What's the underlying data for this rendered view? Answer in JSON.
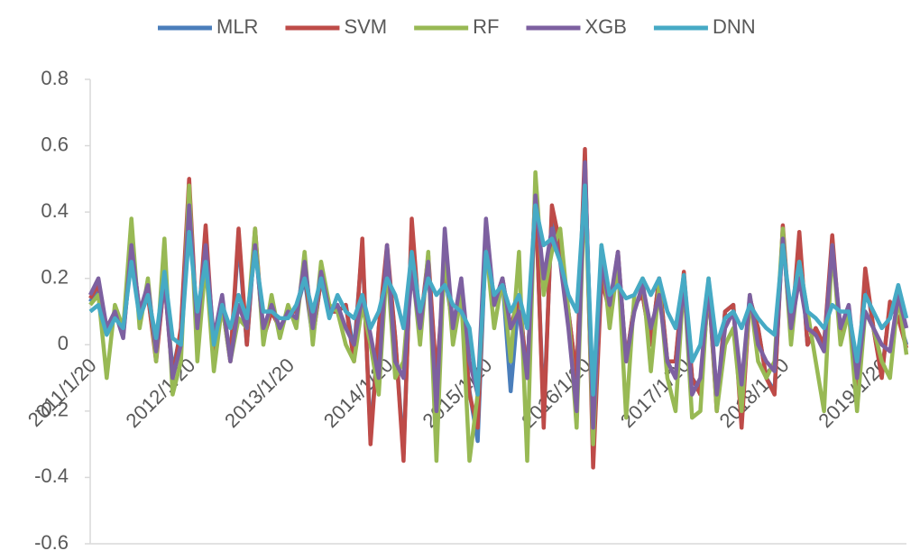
{
  "chart_data": {
    "type": "line",
    "categories": [
      "2011/1/20",
      null,
      null,
      null,
      null,
      null,
      null,
      null,
      null,
      null,
      null,
      null,
      "2012/1/20",
      null,
      null,
      null,
      null,
      null,
      null,
      null,
      null,
      null,
      null,
      null,
      "2013/1/20",
      null,
      null,
      null,
      null,
      null,
      null,
      null,
      null,
      null,
      null,
      null,
      "2014/1/20",
      null,
      null,
      null,
      null,
      null,
      null,
      null,
      null,
      null,
      null,
      null,
      "2015/1/20",
      null,
      null,
      null,
      null,
      null,
      null,
      null,
      null,
      null,
      null,
      null,
      "2016/1/20",
      null,
      null,
      null,
      null,
      null,
      null,
      null,
      null,
      null,
      null,
      null,
      "2017/1/20",
      null,
      null,
      null,
      null,
      null,
      null,
      null,
      null,
      null,
      null,
      null,
      "2018/1/20",
      null,
      null,
      null,
      null,
      null,
      null,
      null,
      null,
      null,
      null,
      null,
      "2019/1/20",
      null,
      null,
      null
    ],
    "series": [
      {
        "name": "MLR",
        "color": "#4a7ebb",
        "values": [
          0.13,
          0.17,
          0.04,
          0.1,
          0.03,
          0.28,
          0.08,
          0.15,
          -0.04,
          0.2,
          -0.08,
          0.04,
          0.47,
          0.02,
          0.33,
          -0.02,
          0.12,
          -0.04,
          0.32,
          0.0,
          0.33,
          0.02,
          0.1,
          0.05,
          0.1,
          0.1,
          0.2,
          0.02,
          0.2,
          0.1,
          0.1,
          0.12,
          -0.02,
          0.3,
          -0.28,
          0.05,
          0.28,
          0.02,
          -0.33,
          0.36,
          0.05,
          0.25,
          -0.1,
          0.22,
          0.05,
          0.14,
          -0.14,
          -0.29,
          0.33,
          0.12,
          0.2,
          -0.14,
          0.15,
          -0.1,
          0.45,
          -0.22,
          0.4,
          0.28,
          0.1,
          -0.1,
          0.56,
          -0.27,
          0.2,
          0.1,
          0.26,
          -0.05,
          0.12,
          0.15,
          0.0,
          0.2,
          -0.05,
          -0.05,
          0.2,
          -0.1,
          -0.14,
          0.17,
          -0.18,
          0.1,
          0.12,
          -0.23,
          0.14,
          0.05,
          -0.1,
          -0.14,
          0.34,
          0.02,
          0.32,
          0.0,
          0.05,
          0.0,
          0.31,
          0.02,
          0.1,
          -0.14,
          0.21,
          0.05,
          -0.09,
          0.12,
          0.08,
          0.0
        ]
      },
      {
        "name": "SVM",
        "color": "#be4b48",
        "values": [
          0.14,
          0.18,
          0.05,
          0.1,
          0.03,
          0.3,
          0.1,
          0.15,
          -0.05,
          0.2,
          -0.1,
          0.05,
          0.5,
          0.02,
          0.36,
          -0.02,
          0.12,
          -0.05,
          0.35,
          0.0,
          0.35,
          0.02,
          0.1,
          0.05,
          0.1,
          0.1,
          0.22,
          0.02,
          0.2,
          0.1,
          0.1,
          0.12,
          -0.05,
          0.32,
          -0.3,
          0.05,
          0.3,
          0.02,
          -0.35,
          0.38,
          0.05,
          0.27,
          -0.1,
          0.24,
          0.05,
          0.15,
          -0.15,
          -0.25,
          0.35,
          0.12,
          0.2,
          0.05,
          0.15,
          -0.1,
          0.47,
          -0.25,
          0.42,
          0.3,
          0.1,
          -0.1,
          0.59,
          -0.37,
          0.2,
          0.1,
          0.28,
          -0.05,
          0.12,
          0.15,
          0.0,
          0.2,
          -0.05,
          -0.05,
          0.22,
          -0.1,
          -0.15,
          0.18,
          -0.2,
          0.1,
          0.12,
          -0.25,
          0.14,
          0.05,
          -0.1,
          -0.15,
          0.36,
          0.02,
          0.34,
          0.0,
          0.05,
          0.0,
          0.33,
          0.02,
          0.1,
          -0.15,
          0.23,
          0.05,
          -0.1,
          0.13,
          0.08,
          -0.01
        ]
      },
      {
        "name": "RF",
        "color": "#98b954",
        "values": [
          0.12,
          0.15,
          -0.1,
          0.12,
          0.05,
          0.38,
          0.05,
          0.2,
          -0.05,
          0.32,
          -0.15,
          -0.05,
          0.48,
          -0.05,
          0.25,
          -0.08,
          0.12,
          -0.05,
          0.08,
          0.05,
          0.35,
          0.0,
          0.15,
          0.02,
          0.12,
          0.05,
          0.28,
          0.0,
          0.25,
          0.12,
          0.1,
          0.0,
          -0.05,
          0.12,
          0.0,
          -0.15,
          0.25,
          -0.1,
          -0.05,
          0.25,
          0.0,
          0.28,
          -0.35,
          0.3,
          0.0,
          0.15,
          -0.35,
          -0.15,
          0.3,
          0.05,
          0.2,
          -0.05,
          0.28,
          -0.35,
          0.52,
          0.15,
          0.28,
          0.35,
          0.1,
          -0.25,
          0.5,
          -0.3,
          0.3,
          0.05,
          0.25,
          -0.22,
          0.15,
          0.2,
          -0.08,
          0.18,
          -0.1,
          -0.2,
          0.2,
          -0.22,
          -0.2,
          0.2,
          -0.2,
          0.0,
          0.05,
          -0.2,
          0.15,
          -0.05,
          -0.1,
          -0.05,
          0.35,
          0.0,
          0.25,
          0.1,
          -0.05,
          -0.2,
          0.3,
          0.0,
          0.1,
          -0.2,
          0.1,
          0.05,
          -0.05,
          -0.1,
          0.15,
          -0.03
        ]
      },
      {
        "name": "XGB",
        "color": "#7d60a0",
        "values": [
          0.15,
          0.2,
          0.05,
          0.1,
          0.02,
          0.3,
          0.1,
          0.18,
          -0.02,
          0.2,
          -0.1,
          0.0,
          0.42,
          0.05,
          0.3,
          0.02,
          0.15,
          -0.05,
          0.12,
          0.05,
          0.3,
          0.05,
          0.12,
          0.05,
          0.1,
          0.08,
          0.25,
          0.05,
          0.22,
          0.1,
          0.12,
          0.05,
          0.0,
          0.15,
          0.03,
          -0.1,
          0.3,
          -0.05,
          -0.1,
          0.22,
          0.05,
          0.25,
          -0.2,
          0.35,
          0.05,
          0.2,
          -0.05,
          -0.15,
          0.38,
          0.12,
          0.2,
          0.05,
          0.1,
          -0.1,
          0.45,
          0.2,
          0.35,
          0.25,
          0.05,
          -0.2,
          0.55,
          -0.25,
          0.25,
          0.12,
          0.28,
          -0.05,
          0.1,
          0.18,
          0.05,
          0.15,
          -0.05,
          -0.1,
          0.2,
          -0.15,
          -0.1,
          0.18,
          -0.15,
          0.05,
          0.1,
          -0.12,
          0.15,
          0.0,
          -0.05,
          -0.08,
          0.32,
          0.05,
          0.2,
          0.05,
          0.03,
          -0.02,
          0.3,
          0.05,
          0.12,
          -0.1,
          0.1,
          0.05,
          0.0,
          -0.02,
          0.15,
          0.05
        ]
      },
      {
        "name": "DNN",
        "color": "#46aac5",
        "values": [
          0.1,
          0.12,
          0.03,
          0.08,
          0.05,
          0.25,
          0.08,
          0.15,
          0.02,
          0.22,
          0.02,
          0.0,
          0.34,
          0.1,
          0.25,
          0.0,
          0.12,
          0.05,
          0.15,
          0.08,
          0.28,
          0.1,
          0.1,
          0.08,
          0.08,
          0.12,
          0.2,
          0.1,
          0.2,
          0.08,
          0.15,
          0.1,
          0.08,
          0.15,
          0.05,
          0.1,
          0.2,
          0.15,
          0.05,
          0.28,
          0.1,
          0.2,
          0.15,
          0.18,
          0.12,
          0.1,
          0.05,
          -0.15,
          0.28,
          0.15,
          0.18,
          0.1,
          0.15,
          0.05,
          0.42,
          0.3,
          0.32,
          0.25,
          0.15,
          0.1,
          0.48,
          -0.15,
          0.3,
          0.15,
          0.18,
          0.14,
          0.15,
          0.2,
          0.15,
          0.2,
          0.1,
          0.05,
          0.21,
          -0.05,
          0.0,
          0.2,
          0.0,
          0.08,
          0.1,
          0.05,
          0.12,
          0.08,
          0.05,
          0.03,
          0.3,
          0.1,
          0.25,
          0.1,
          0.08,
          0.05,
          0.12,
          0.1,
          0.1,
          -0.05,
          0.15,
          0.1,
          0.05,
          0.08,
          0.18,
          0.08
        ]
      }
    ],
    "ylim": [
      -0.6,
      0.8
    ],
    "yticks": [
      -0.6,
      -0.4,
      -0.2,
      0,
      0.2,
      0.4,
      0.6,
      0.8
    ],
    "grid": false,
    "legend": "top"
  }
}
